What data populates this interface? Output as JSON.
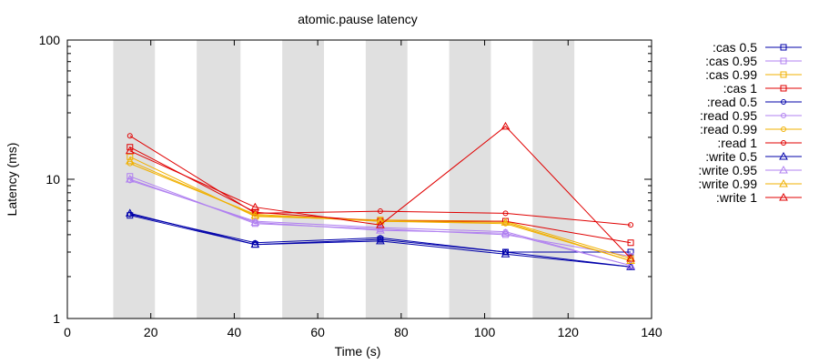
{
  "chart_data": {
    "type": "line",
    "title": "atomic.pause latency",
    "xlabel": "Time (s)",
    "ylabel": "Latency (ms)",
    "xlim": [
      0,
      140
    ],
    "ylim": [
      1,
      100
    ],
    "yscale": "log",
    "x_ticks": [
      0,
      20,
      40,
      60,
      80,
      100,
      120,
      140
    ],
    "y_ticks": [
      {
        "value": 1,
        "label": "1"
      },
      {
        "value": 10,
        "label": "10"
      },
      {
        "value": 100,
        "label": "100"
      }
    ],
    "shaded_bands": [
      [
        11,
        21
      ],
      [
        31,
        41.5
      ],
      [
        51.5,
        61.5
      ],
      [
        71.5,
        81.5
      ],
      [
        91.5,
        101.5
      ],
      [
        111.5,
        121.5
      ]
    ],
    "grid": false,
    "legend_position": "right, outside plot",
    "series": [
      {
        "name": ":cas 0.5",
        "color": "#0000aa",
        "marker": "square",
        "x": [
          15,
          45,
          75,
          105,
          135
        ],
        "y": [
          5.5,
          3.4,
          3.7,
          3.0,
          3.0
        ]
      },
      {
        "name": ":cas 0.95",
        "color": "#b080f0",
        "marker": "square",
        "x": [
          15,
          45,
          75,
          105,
          135
        ],
        "y": [
          10.5,
          4.8,
          4.4,
          4.0,
          2.8
        ]
      },
      {
        "name": ":cas 0.99",
        "color": "#f0b000",
        "marker": "square",
        "x": [
          15,
          45,
          75,
          105,
          135
        ],
        "y": [
          14.5,
          5.4,
          5.1,
          5.0,
          2.7
        ]
      },
      {
        "name": ":cas 1",
        "color": "#e00000",
        "marker": "square",
        "x": [
          15,
          45,
          75,
          105,
          135
        ],
        "y": [
          17.0,
          5.8,
          5.0,
          5.0,
          3.5
        ]
      },
      {
        "name": ":read 0.5",
        "color": "#0000aa",
        "marker": "circle",
        "x": [
          15,
          45,
          75,
          105,
          135
        ],
        "y": [
          5.6,
          3.5,
          3.8,
          3.0,
          2.35
        ]
      },
      {
        "name": ":read 0.95",
        "color": "#b080f0",
        "marker": "circle",
        "x": [
          15,
          45,
          75,
          105,
          135
        ],
        "y": [
          9.8,
          5.0,
          4.5,
          4.2,
          2.4
        ]
      },
      {
        "name": ":read 0.99",
        "color": "#f0b000",
        "marker": "circle",
        "x": [
          15,
          45,
          75,
          105,
          135
        ],
        "y": [
          13.0,
          5.6,
          5.0,
          4.8,
          2.6
        ]
      },
      {
        "name": ":read 1",
        "color": "#e00000",
        "marker": "circle",
        "x": [
          15,
          45,
          75,
          105,
          135
        ],
        "y": [
          20.5,
          5.7,
          5.9,
          5.7,
          4.7
        ]
      },
      {
        "name": ":write 0.5",
        "color": "#0000aa",
        "marker": "triangle",
        "x": [
          15,
          45,
          75,
          105,
          135
        ],
        "y": [
          5.7,
          3.4,
          3.6,
          2.9,
          2.35
        ]
      },
      {
        "name": ":write 0.95",
        "color": "#b080f0",
        "marker": "triangle",
        "x": [
          15,
          45,
          75,
          105,
          135
        ],
        "y": [
          10.0,
          4.9,
          4.3,
          4.1,
          2.4
        ]
      },
      {
        "name": ":write 0.99",
        "color": "#f0b000",
        "marker": "triangle",
        "x": [
          15,
          45,
          75,
          105,
          135
        ],
        "y": [
          13.5,
          5.5,
          5.0,
          4.9,
          2.6
        ]
      },
      {
        "name": ":write 1",
        "color": "#e00000",
        "marker": "triangle",
        "x": [
          15,
          45,
          75,
          105,
          135
        ],
        "y": [
          16.0,
          6.3,
          4.7,
          24.0,
          2.7
        ]
      }
    ]
  }
}
